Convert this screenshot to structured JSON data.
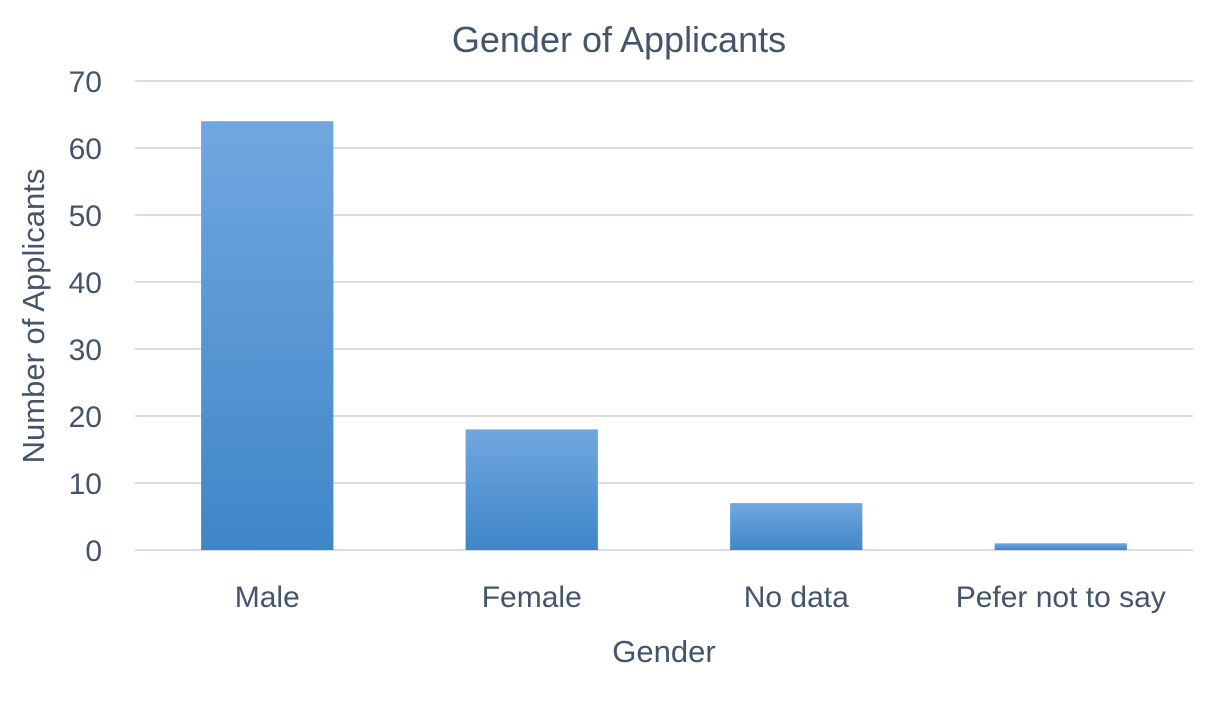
{
  "chart_data": {
    "type": "bar",
    "title": "Gender of Applicants",
    "xlabel": "Gender",
    "ylabel": "Number of Applicants",
    "categories": [
      "Male",
      "Female",
      "No data",
      "Pefer not to say"
    ],
    "values": [
      64,
      18,
      7,
      1
    ],
    "ylim": [
      0,
      70
    ],
    "yticks": [
      0,
      10,
      20,
      30,
      40,
      50,
      60,
      70
    ],
    "grid": true,
    "legend": "none",
    "colors": {
      "bar_top": "#71a7df",
      "bar_bottom": "#3f86c8",
      "text": "#44546a",
      "grid": "#d9dde3"
    }
  }
}
